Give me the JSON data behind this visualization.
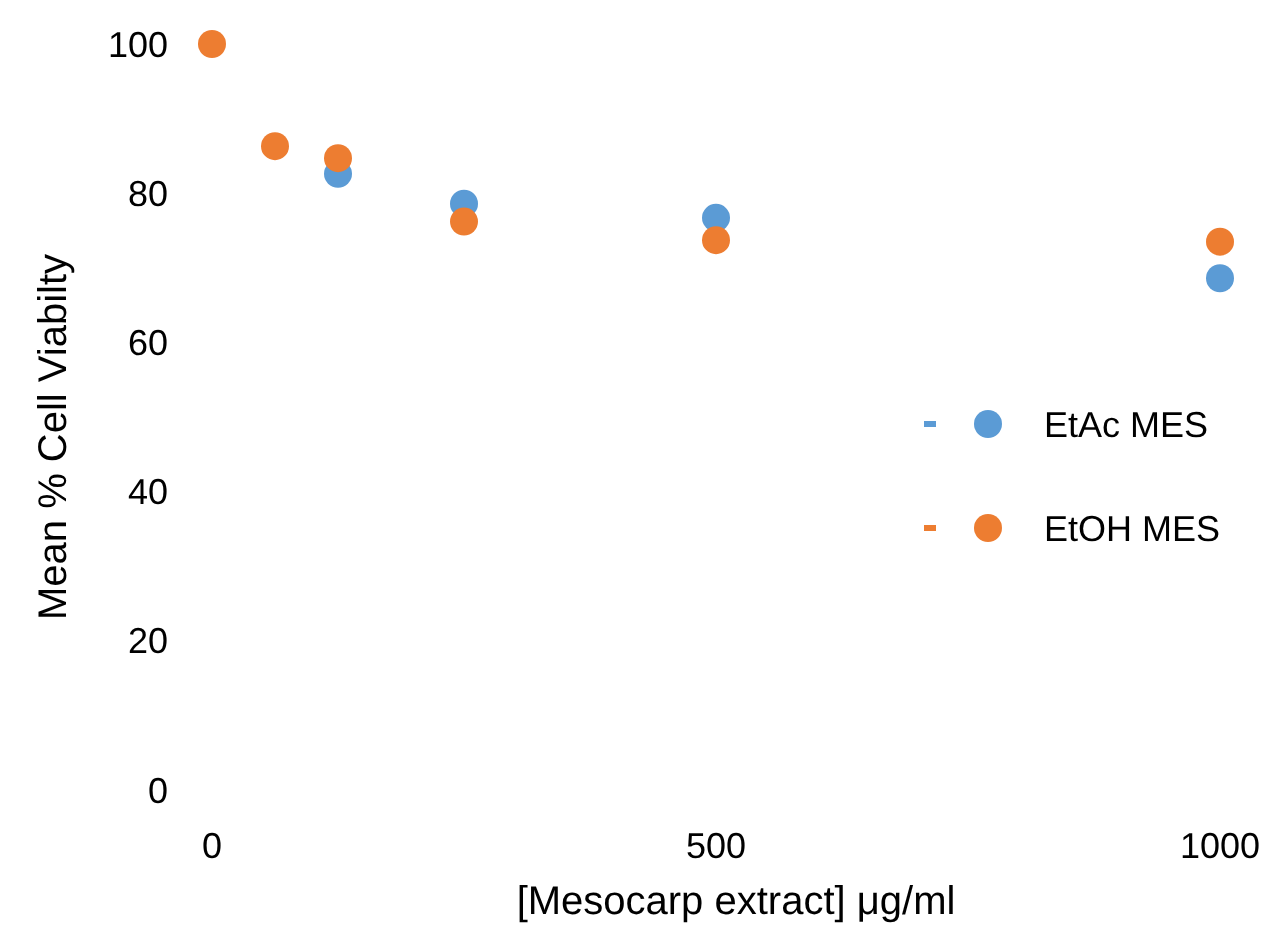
{
  "chart_data": {
    "type": "scatter",
    "xlabel": "[Mesocarp extract] μg/ml",
    "ylabel": "Mean % Cell Viabilty",
    "x": [
      0,
      62.5,
      125,
      250,
      500,
      1000
    ],
    "series": [
      {
        "name": "EtAc MES",
        "color": "#5b9bd5",
        "values": [
          null,
          null,
          82.6,
          78.6,
          76.7,
          68.6
        ]
      },
      {
        "name": "EtOH MES",
        "color": "#ed7d31",
        "values": [
          100,
          86.3,
          84.7,
          76.2,
          73.7,
          73.5
        ]
      }
    ],
    "xlim": [
      0,
      1000
    ],
    "xticks": [
      0,
      500,
      1000
    ],
    "ylim": [
      0,
      100
    ],
    "yticks": [
      0,
      20,
      40,
      60,
      80,
      100
    ],
    "grid": false,
    "legend": "right",
    "marker": "circle"
  }
}
